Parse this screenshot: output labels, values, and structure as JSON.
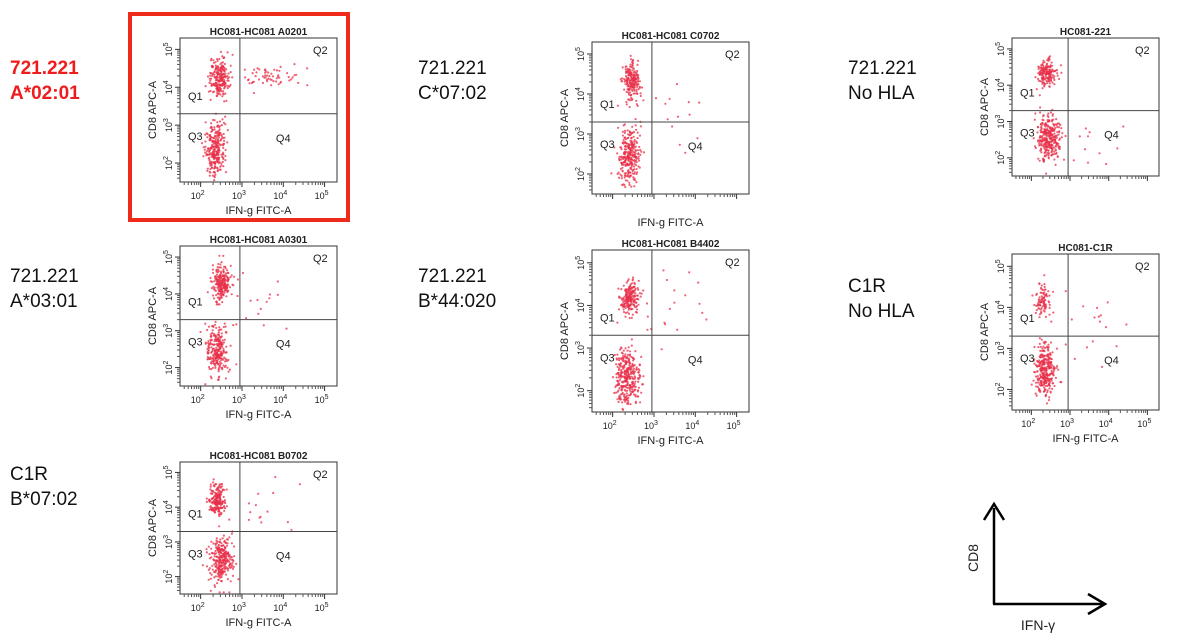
{
  "chart_data": [
    {
      "type": "scatter",
      "title": "HC081-HC081 A0201",
      "row_label": [
        "721.221",
        "A*02:01"
      ],
      "highlighted": true,
      "xlabel": "IFN-g FITC-A",
      "ylabel": "CD8 APC-A",
      "x_ticks": [
        "10",
        "10",
        "10",
        "10"
      ],
      "x_tick_exp": [
        "2",
        "3",
        "4",
        "5"
      ],
      "y_ticks": [
        "10",
        "10",
        "10",
        "10"
      ],
      "y_tick_exp": [
        "2",
        "3",
        "4",
        "5"
      ],
      "quadrants": [
        "Q1",
        "Q2",
        "Q3",
        "Q4"
      ],
      "point_color": "#e8304a",
      "clusters": [
        {
          "x": 2.45,
          "y": 4.25,
          "n": 230,
          "sx": 0.12,
          "sy": 0.25
        },
        {
          "x": 2.35,
          "y": 2.4,
          "n": 260,
          "sx": 0.12,
          "sy": 0.35
        },
        {
          "x": 3.7,
          "y": 4.3,
          "n": 60,
          "sx": 0.35,
          "sy": 0.15
        }
      ]
    },
    {
      "type": "scatter",
      "title": "HC081-HC081 C0702",
      "row_label": [
        "721.221",
        "C*07:02"
      ],
      "highlighted": false,
      "xlabel": "IFN-g FITC-A",
      "ylabel": "CD8 APC-A",
      "x_ticks": [],
      "x_tick_exp": [],
      "y_ticks": [
        "10",
        "10",
        "10",
        "10"
      ],
      "y_tick_exp": [
        "2",
        "3",
        "4",
        "5"
      ],
      "quadrants": [
        "Q1",
        "Q2",
        "Q3",
        "Q4"
      ],
      "point_color": "#e8304a",
      "clusters": [
        {
          "x": 2.45,
          "y": 4.3,
          "n": 200,
          "sx": 0.1,
          "sy": 0.22
        },
        {
          "x": 2.4,
          "y": 2.45,
          "n": 280,
          "sx": 0.13,
          "sy": 0.35
        },
        {
          "x": 3.3,
          "y": 3.5,
          "n": 15,
          "sx": 0.5,
          "sy": 0.5
        }
      ]
    },
    {
      "type": "scatter",
      "title": "HC081-221",
      "row_label": [
        "721.221",
        "No HLA"
      ],
      "highlighted": false,
      "xlabel": "",
      "ylabel": "CD8 APC-A",
      "x_ticks": [],
      "x_tick_exp": [],
      "y_ticks": [
        "10",
        "10",
        "10",
        "10"
      ],
      "y_tick_exp": [
        "2",
        "3",
        "4",
        "5"
      ],
      "quadrants": [
        "Q1",
        "Q2",
        "Q3",
        "Q4"
      ],
      "point_color": "#e8304a",
      "clusters": [
        {
          "x": 2.4,
          "y": 4.35,
          "n": 170,
          "sx": 0.12,
          "sy": 0.18
        },
        {
          "x": 2.45,
          "y": 2.55,
          "n": 300,
          "sx": 0.14,
          "sy": 0.3
        },
        {
          "x": 3.5,
          "y": 2.5,
          "n": 12,
          "sx": 0.5,
          "sy": 0.5
        }
      ]
    },
    {
      "type": "scatter",
      "title": "HC081-HC081 A0301",
      "row_label": [
        "721.221",
        "A*03:01"
      ],
      "highlighted": false,
      "xlabel": "IFN-g FITC-A",
      "ylabel": "CD8 APC-A",
      "x_ticks": [
        "10",
        "10",
        "10",
        "10"
      ],
      "x_tick_exp": [
        "2",
        "3",
        "4",
        "5"
      ],
      "y_ticks": [
        "10",
        "10",
        "10",
        "10"
      ],
      "y_tick_exp": [
        "2",
        "3",
        "4",
        "5"
      ],
      "quadrants": [
        "Q1",
        "Q2",
        "Q3",
        "Q4"
      ],
      "point_color": "#e8304a",
      "clusters": [
        {
          "x": 2.5,
          "y": 4.3,
          "n": 220,
          "sx": 0.12,
          "sy": 0.25
        },
        {
          "x": 2.4,
          "y": 2.45,
          "n": 260,
          "sx": 0.13,
          "sy": 0.32
        },
        {
          "x": 3.4,
          "y": 3.7,
          "n": 18,
          "sx": 0.5,
          "sy": 0.5
        }
      ]
    },
    {
      "type": "scatter",
      "title": "HC081-HC081 B4402",
      "row_label": [
        "721.221",
        "B*44:020"
      ],
      "highlighted": false,
      "xlabel": "IFN-g FITC-A",
      "ylabel": "CD8 APC-A",
      "x_ticks": [
        "10",
        "10",
        "10",
        "10"
      ],
      "x_tick_exp": [
        "2",
        "3",
        "4",
        "5"
      ],
      "y_ticks": [
        "10",
        "10",
        "10",
        "10"
      ],
      "y_tick_exp": [
        "2",
        "3",
        "4",
        "5"
      ],
      "quadrants": [
        "Q1",
        "Q2",
        "Q3",
        "Q4"
      ],
      "point_color": "#e8304a",
      "clusters": [
        {
          "x": 2.4,
          "y": 4.15,
          "n": 200,
          "sx": 0.11,
          "sy": 0.2
        },
        {
          "x": 2.35,
          "y": 2.35,
          "n": 320,
          "sx": 0.14,
          "sy": 0.32
        },
        {
          "x": 3.3,
          "y": 3.8,
          "n": 20,
          "sx": 0.5,
          "sy": 0.5
        }
      ]
    },
    {
      "type": "scatter",
      "title": "HC081-C1R",
      "row_label": [
        "C1R",
        "No HLA"
      ],
      "highlighted": false,
      "xlabel": "IFN-g FITC-A",
      "ylabel": "CD8 APC-A",
      "x_ticks": [
        "10",
        "10",
        "10",
        "10"
      ],
      "x_tick_exp": [
        "2",
        "3",
        "4",
        "5"
      ],
      "y_ticks": [
        "10",
        "10",
        "10",
        "10"
      ],
      "y_tick_exp": [
        "2",
        "3",
        "4",
        "5"
      ],
      "quadrants": [
        "Q1",
        "Q2",
        "Q3",
        "Q4"
      ],
      "point_color": "#e8304a",
      "clusters": [
        {
          "x": 2.3,
          "y": 4.2,
          "n": 90,
          "sx": 0.12,
          "sy": 0.2
        },
        {
          "x": 2.35,
          "y": 2.45,
          "n": 300,
          "sx": 0.13,
          "sy": 0.3
        },
        {
          "x": 3.4,
          "y": 3.6,
          "n": 18,
          "sx": 0.5,
          "sy": 0.5
        }
      ]
    },
    {
      "type": "scatter",
      "title": "HC081-HC081 B0702",
      "row_label": [
        "C1R",
        "B*07:02"
      ],
      "highlighted": false,
      "xlabel": "IFN-g FITC-A",
      "ylabel": "CD8 APC-A",
      "x_ticks": [
        "10",
        "10",
        "10",
        "10"
      ],
      "x_tick_exp": [
        "2",
        "3",
        "4",
        "5"
      ],
      "y_ticks": [
        "10",
        "10",
        "10",
        "10"
      ],
      "y_tick_exp": [
        "2",
        "3",
        "4",
        "5"
      ],
      "quadrants": [
        "Q1",
        "Q2",
        "Q3",
        "Q4"
      ],
      "point_color": "#e8304a",
      "clusters": [
        {
          "x": 2.4,
          "y": 4.2,
          "n": 200,
          "sx": 0.1,
          "sy": 0.25
        },
        {
          "x": 2.5,
          "y": 2.45,
          "n": 280,
          "sx": 0.13,
          "sy": 0.32
        },
        {
          "x": 3.4,
          "y": 3.8,
          "n": 15,
          "sx": 0.5,
          "sy": 0.5
        }
      ]
    }
  ],
  "axis_key": {
    "y_label": "CD8",
    "x_label": "IFN-γ"
  }
}
